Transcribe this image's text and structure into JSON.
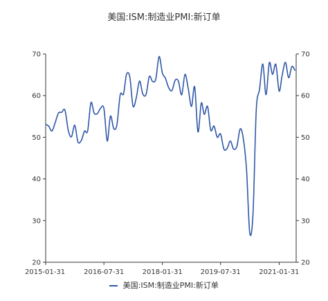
{
  "chart_data": {
    "type": "line",
    "title": "美国:ISM:制造业PMI:新订单",
    "ylim": [
      20,
      70
    ],
    "y_ticks": [
      "20",
      "30",
      "40",
      "50",
      "60",
      "70"
    ],
    "x_ticks": [
      "2015-01-31",
      "2016-07-31",
      "2018-01-31",
      "2019-07-31",
      "2021-01-31"
    ],
    "legend_position": "bottom",
    "series": [
      {
        "name": "美国:ISM:制造业PMI:新订单",
        "color": "#2F56A6",
        "x": [
          "2015-01",
          "2015-02",
          "2015-03",
          "2015-04",
          "2015-05",
          "2015-06",
          "2015-07",
          "2015-08",
          "2015-09",
          "2015-10",
          "2015-11",
          "2015-12",
          "2016-01",
          "2016-02",
          "2016-03",
          "2016-04",
          "2016-05",
          "2016-06",
          "2016-07",
          "2016-08",
          "2016-09",
          "2016-10",
          "2016-11",
          "2016-12",
          "2017-01",
          "2017-02",
          "2017-03",
          "2017-04",
          "2017-05",
          "2017-06",
          "2017-07",
          "2017-08",
          "2017-09",
          "2017-10",
          "2017-11",
          "2017-12",
          "2018-01",
          "2018-02",
          "2018-03",
          "2018-04",
          "2018-05",
          "2018-06",
          "2018-07",
          "2018-08",
          "2018-09",
          "2018-10",
          "2018-11",
          "2018-12",
          "2019-01",
          "2019-02",
          "2019-03",
          "2019-04",
          "2019-05",
          "2019-06",
          "2019-07",
          "2019-08",
          "2019-09",
          "2019-10",
          "2019-11",
          "2019-12",
          "2020-01",
          "2020-02",
          "2020-03",
          "2020-04",
          "2020-05",
          "2020-06",
          "2020-07",
          "2020-08",
          "2020-09",
          "2020-10",
          "2020-11",
          "2020-12",
          "2021-01",
          "2021-02",
          "2021-03",
          "2021-04",
          "2021-05",
          "2021-06"
        ],
        "values": [
          53.1,
          52.7,
          51.5,
          53.5,
          55.8,
          56.0,
          56.5,
          51.7,
          50.1,
          52.9,
          48.9,
          49.2,
          51.5,
          51.5,
          58.3,
          55.8,
          55.7,
          57.0,
          56.9,
          49.1,
          55.1,
          52.1,
          53.0,
          60.2,
          60.4,
          65.1,
          64.5,
          57.5,
          59.5,
          63.5,
          60.4,
          60.3,
          64.6,
          63.4,
          64.0,
          69.4,
          65.4,
          64.2,
          61.9,
          61.2,
          63.7,
          63.5,
          60.2,
          65.1,
          61.8,
          57.4,
          62.1,
          51.3,
          58.2,
          55.5,
          57.4,
          51.7,
          52.7,
          50.0,
          50.8,
          47.2,
          47.3,
          49.1,
          47.2,
          47.8,
          52.0,
          49.8,
          42.2,
          27.1,
          31.8,
          56.4,
          61.5,
          67.6,
          60.2,
          67.9,
          65.1,
          67.5,
          61.1,
          64.8,
          68.0,
          64.3,
          67.0,
          66.0
        ]
      }
    ]
  }
}
